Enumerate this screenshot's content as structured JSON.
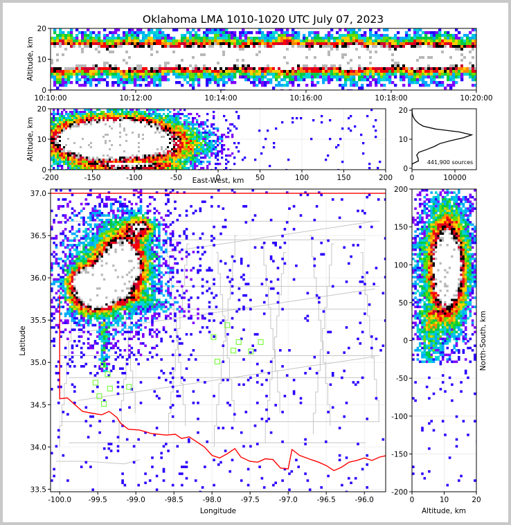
{
  "chart_data": [
    {
      "panel": "time-altitude",
      "type": "heatmap",
      "title": "Oklahoma LMA 1010-1020 UTC July 07, 2023",
      "ylabel": "Altitude, km",
      "ylim": [
        0,
        20
      ],
      "yticks": [
        "0",
        "10",
        "20"
      ],
      "xticks": [
        "10:10:00",
        "10:12:00",
        "10:14:00",
        "10:16:00",
        "10:18:00",
        "10:20:00"
      ],
      "core_altitude_km": 11,
      "band_altitude_km": [
        2,
        20
      ]
    },
    {
      "panel": "east-west-altitude",
      "type": "heatmap",
      "xlabel": "East-West, km",
      "ylabel": "Altitude, km",
      "xlim": [
        -200,
        200
      ],
      "ylim": [
        0,
        20
      ],
      "xticks": [
        "-200",
        "-150",
        "-100",
        "-50",
        "0",
        "50",
        "100",
        "150",
        "200"
      ],
      "yticks": [
        "0",
        "10",
        "20"
      ],
      "cores": [
        {
          "x": -155,
          "y": 10,
          "intensity": 1.0
        },
        {
          "x": -108,
          "y": 11,
          "intensity": 1.0
        },
        {
          "x": -60,
          "y": 8,
          "intensity": 0.35
        }
      ]
    },
    {
      "panel": "altitude-histogram",
      "type": "line",
      "yticks": [
        "0",
        "10",
        "20"
      ],
      "xticks": [
        "0",
        "10000"
      ],
      "xlim": [
        0,
        15000
      ],
      "ylim": [
        -0.5,
        20.5
      ],
      "annotation": "441,900 sources",
      "profile": [
        {
          "alt": 0.5,
          "count": 0
        },
        {
          "alt": 1.5,
          "count": 50
        },
        {
          "alt": 2.5,
          "count": 1500
        },
        {
          "alt": 3.5,
          "count": 1400
        },
        {
          "alt": 4.5,
          "count": 1100
        },
        {
          "alt": 5.5,
          "count": 1600
        },
        {
          "alt": 6.5,
          "count": 3500
        },
        {
          "alt": 7.5,
          "count": 5200
        },
        {
          "alt": 8.5,
          "count": 6500
        },
        {
          "alt": 9.5,
          "count": 9000
        },
        {
          "alt": 10.5,
          "count": 12000
        },
        {
          "alt": 11.5,
          "count": 13900
        },
        {
          "alt": 12.5,
          "count": 11000
        },
        {
          "alt": 13.5,
          "count": 5500
        },
        {
          "alt": 14.5,
          "count": 2600
        },
        {
          "alt": 15.5,
          "count": 1500
        },
        {
          "alt": 16.5,
          "count": 800
        },
        {
          "alt": 17.5,
          "count": 350
        },
        {
          "alt": 18.5,
          "count": 120
        },
        {
          "alt": 19.5,
          "count": 30
        },
        {
          "alt": 20.5,
          "count": 0
        }
      ]
    },
    {
      "panel": "plan-view",
      "type": "heatmap",
      "xlabel": "Longitude",
      "ylabel": "Latitude",
      "xlim": [
        -100.12,
        -95.72
      ],
      "ylim": [
        33.47,
        37.05
      ],
      "xticks": [
        "-100.0",
        "-99.5",
        "-99.0",
        "-98.5",
        "-98.0",
        "-97.5",
        "-97.0",
        "-96.5",
        "-96.0"
      ],
      "yticks": [
        "33.5",
        "34.0",
        "34.5",
        "35.0",
        "35.5",
        "36.0",
        "36.5",
        "37.0"
      ],
      "stations": [
        {
          "lon": -99.43,
          "lat": 34.97
        },
        {
          "lon": -99.37,
          "lat": 34.86
        },
        {
          "lon": -99.53,
          "lat": 34.76
        },
        {
          "lon": -99.34,
          "lat": 34.69
        },
        {
          "lon": -99.09,
          "lat": 34.71
        },
        {
          "lon": -99.48,
          "lat": 34.6
        },
        {
          "lon": -99.42,
          "lat": 34.51
        },
        {
          "lon": -97.8,
          "lat": 35.44
        },
        {
          "lon": -97.98,
          "lat": 35.3
        },
        {
          "lon": -97.65,
          "lat": 35.24
        },
        {
          "lon": -97.36,
          "lat": 35.24
        },
        {
          "lon": -97.72,
          "lat": 35.14
        },
        {
          "lon": -97.49,
          "lat": 35.13
        },
        {
          "lon": -97.93,
          "lat": 35.01
        }
      ],
      "station_color": "#7cfc44",
      "boundary_color": "#ff0000"
    },
    {
      "panel": "altitude-north-south",
      "type": "heatmap",
      "xlabel": "Altitude, km",
      "ylabel": "North-South, km",
      "xlim": [
        0,
        20
      ],
      "ylim": [
        -200,
        200
      ],
      "xticks": [
        "0",
        "10",
        "20"
      ],
      "yticks": [
        "-200",
        "-150",
        "-100",
        "-50",
        "0",
        "50",
        "100",
        "150",
        "200"
      ]
    }
  ]
}
